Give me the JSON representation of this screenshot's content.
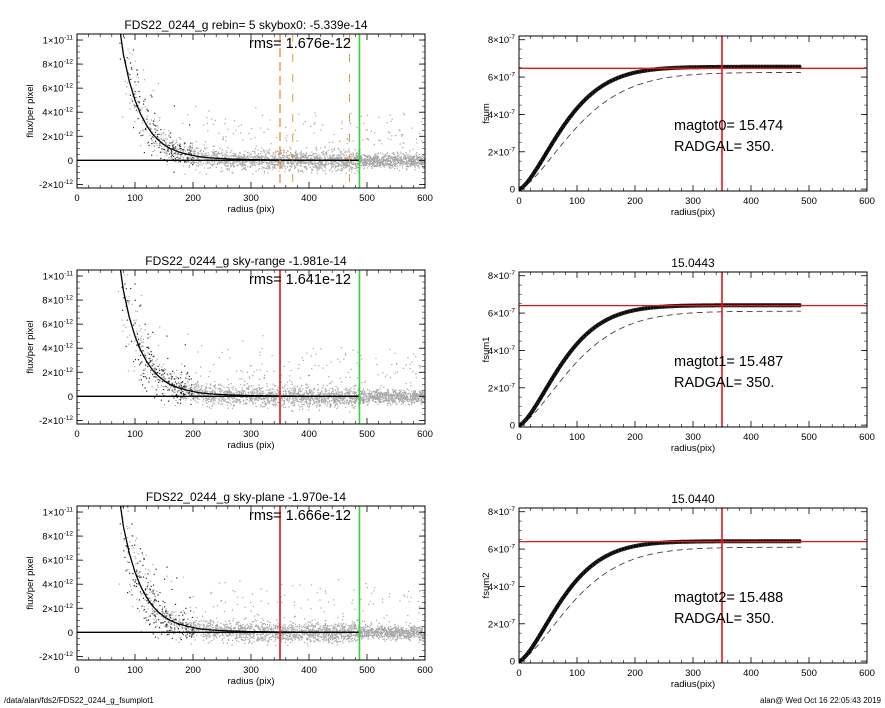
{
  "footer": {
    "path": "/data/alan/fds2/FDS22_0244_g_fsumplot1",
    "stamp": "alan@  Wed Oct 16 22:05:43 2019"
  },
  "colors": {
    "red": "#e8141b",
    "green": "#2fd62f",
    "orange": "#e6811e",
    "scatter": "#a6a6a6",
    "dark_scatter": "#2a2a2a"
  },
  "chart_data": [
    {
      "type": "scatter",
      "panel": "profile-1",
      "title": "FDS22_0244_g rebin= 5    skybox0: -5.339e-14",
      "annotation": "rms= 1.676e-12",
      "xlabel": "radius (pix)",
      "ylabel": "flux/per pixel",
      "xlim": [
        0,
        600
      ],
      "ylim": [
        -2.3e-12,
        1.05e-11
      ],
      "xticks": [
        0,
        100,
        200,
        300,
        400,
        500,
        600
      ],
      "yticks": [
        {
          "value": 1e-11,
          "mant": "1×10",
          "exp": "-11"
        },
        {
          "value": 8e-12,
          "mant": "8×10",
          "exp": "-12"
        },
        {
          "value": 6e-12,
          "mant": "6×10",
          "exp": "-12"
        },
        {
          "value": 4e-12,
          "mant": "4×10",
          "exp": "-12"
        },
        {
          "value": 2e-12,
          "mant": "2×10",
          "exp": "-12"
        },
        {
          "value": 0,
          "mant": "0",
          "exp": ""
        },
        {
          "value": -2e-12,
          "mant": "-2×10",
          "exp": "-12"
        }
      ],
      "vlines": [
        {
          "x": 350,
          "color": "#e6811e",
          "style": "dashed"
        },
        {
          "x": 372,
          "color": "#e6811e",
          "style": "dashed-fine"
        },
        {
          "x": 470,
          "color": "#e6811e",
          "style": "dashed-fine"
        },
        {
          "x": 487,
          "color": "#2fd62f",
          "style": "solid"
        }
      ],
      "mean_profile": {
        "x": [
          75,
          80,
          90,
          100,
          110,
          120,
          130,
          140,
          150,
          160,
          175,
          190,
          210,
          230,
          260,
          300,
          350,
          400,
          450,
          487
        ],
        "y": [
          1.05e-11,
          8.8e-12,
          6.6e-12,
          5e-12,
          3.8e-12,
          2.9e-12,
          2.2e-12,
          1.7e-12,
          1.3e-12,
          1e-12,
          7e-13,
          5e-13,
          3e-13,
          2e-13,
          1.2e-13,
          6e-14,
          3e-14,
          1e-14,
          0,
          0
        ]
      },
      "baseline": 0
    },
    {
      "type": "line",
      "panel": "growth-1",
      "title": "",
      "annotations": [
        "magtot0=  15.474",
        "RADGAL=    350."
      ],
      "xlabel": "radius(pix)",
      "ylabel": "fsum",
      "xlim": [
        0,
        600
      ],
      "ylim": [
        -1e-08,
        8.2e-07
      ],
      "xticks": [
        0,
        100,
        200,
        300,
        400,
        500,
        600
      ],
      "yticks": [
        {
          "value": 8e-07,
          "mant": "8×10",
          "exp": "-7"
        },
        {
          "value": 6e-07,
          "mant": "6×10",
          "exp": "-7"
        },
        {
          "value": 4e-07,
          "mant": "4×10",
          "exp": "-7"
        },
        {
          "value": 2e-07,
          "mant": "2×10",
          "exp": "-7"
        },
        {
          "value": 0,
          "mant": "0",
          "exp": ""
        }
      ],
      "hline": 6.47e-07,
      "vline": 350,
      "total": 6.55e-07,
      "scale": 95,
      "dashed_total": 6.25e-07,
      "dashed_scale": 120,
      "xmax": 487
    },
    {
      "type": "scatter",
      "panel": "profile-2",
      "title": "FDS22_0244_g sky-range -1.981e-14",
      "annotation": "rms= 1.641e-12",
      "xlabel": "radius (pix)",
      "ylabel": "flux/per pixel",
      "xlim": [
        0,
        600
      ],
      "ylim": [
        -2.3e-12,
        1.05e-11
      ],
      "xticks": [
        0,
        100,
        200,
        300,
        400,
        500,
        600
      ],
      "yticks": [
        {
          "value": 1e-11,
          "mant": "1×10",
          "exp": "-11"
        },
        {
          "value": 8e-12,
          "mant": "8×10",
          "exp": "-12"
        },
        {
          "value": 6e-12,
          "mant": "6×10",
          "exp": "-12"
        },
        {
          "value": 4e-12,
          "mant": "4×10",
          "exp": "-12"
        },
        {
          "value": 2e-12,
          "mant": "2×10",
          "exp": "-12"
        },
        {
          "value": 0,
          "mant": "0",
          "exp": ""
        },
        {
          "value": -2e-12,
          "mant": "-2×10",
          "exp": "-12"
        }
      ],
      "vlines": [
        {
          "x": 350,
          "color": "#e8141b",
          "style": "solid"
        },
        {
          "x": 487,
          "color": "#2fd62f",
          "style": "solid"
        }
      ],
      "mean_profile": {
        "x": [
          75,
          80,
          90,
          100,
          110,
          120,
          130,
          140,
          150,
          160,
          175,
          190,
          210,
          230,
          260,
          300,
          350,
          400,
          450,
          487
        ],
        "y": [
          1.05e-11,
          8.8e-12,
          6.6e-12,
          5e-12,
          3.8e-12,
          2.9e-12,
          2.2e-12,
          1.7e-12,
          1.3e-12,
          1e-12,
          7e-13,
          5e-13,
          3e-13,
          2e-13,
          1.2e-13,
          6e-14,
          3e-14,
          1e-14,
          0,
          0
        ]
      },
      "baseline": 0
    },
    {
      "type": "line",
      "panel": "growth-2",
      "title": "15.0443",
      "annotations": [
        "magtot1=  15.487",
        "RADGAL=    350."
      ],
      "xlabel": "radius(pix)",
      "ylabel": "fsum1",
      "xlim": [
        0,
        600
      ],
      "ylim": [
        -1e-08,
        8.2e-07
      ],
      "xticks": [
        0,
        100,
        200,
        300,
        400,
        500,
        600
      ],
      "yticks": [
        {
          "value": 8e-07,
          "mant": "8×10",
          "exp": "-7"
        },
        {
          "value": 6e-07,
          "mant": "6×10",
          "exp": "-7"
        },
        {
          "value": 4e-07,
          "mant": "4×10",
          "exp": "-7"
        },
        {
          "value": 2e-07,
          "mant": "2×10",
          "exp": "-7"
        },
        {
          "value": 0,
          "mant": "0",
          "exp": ""
        }
      ],
      "hline": 6.4e-07,
      "vline": 350,
      "total": 6.42e-07,
      "scale": 92,
      "dashed_total": 6.1e-07,
      "dashed_scale": 115,
      "xmax": 487
    },
    {
      "type": "scatter",
      "panel": "profile-3",
      "title": "FDS22_0244_g sky-plane -1.970e-14",
      "annotation": "rms= 1.666e-12",
      "xlabel": "radius (pix)",
      "ylabel": "flux/per pixel",
      "xlim": [
        0,
        600
      ],
      "ylim": [
        -2.3e-12,
        1.05e-11
      ],
      "xticks": [
        0,
        100,
        200,
        300,
        400,
        500,
        600
      ],
      "yticks": [
        {
          "value": 1e-11,
          "mant": "1×10",
          "exp": "-11"
        },
        {
          "value": 8e-12,
          "mant": "8×10",
          "exp": "-12"
        },
        {
          "value": 6e-12,
          "mant": "6×10",
          "exp": "-12"
        },
        {
          "value": 4e-12,
          "mant": "4×10",
          "exp": "-12"
        },
        {
          "value": 2e-12,
          "mant": "2×10",
          "exp": "-12"
        },
        {
          "value": 0,
          "mant": "0",
          "exp": ""
        },
        {
          "value": -2e-12,
          "mant": "-2×10",
          "exp": "-12"
        }
      ],
      "vlines": [
        {
          "x": 350,
          "color": "#e8141b",
          "style": "solid"
        },
        {
          "x": 487,
          "color": "#2fd62f",
          "style": "solid"
        }
      ],
      "mean_profile": {
        "x": [
          75,
          80,
          90,
          100,
          110,
          120,
          130,
          140,
          150,
          160,
          175,
          190,
          210,
          230,
          260,
          300,
          350,
          400,
          450,
          487
        ],
        "y": [
          1.05e-11,
          8.8e-12,
          6.6e-12,
          5e-12,
          3.8e-12,
          2.9e-12,
          2.2e-12,
          1.7e-12,
          1.3e-12,
          1e-12,
          7e-13,
          5e-13,
          3e-13,
          2e-13,
          1.2e-13,
          6e-14,
          3e-14,
          1e-14,
          0,
          0
        ]
      },
      "baseline": 0
    },
    {
      "type": "line",
      "panel": "growth-3",
      "title": "15.0440",
      "annotations": [
        "magtot2=  15.488",
        "RADGAL=    350."
      ],
      "xlabel": "radius(pix)",
      "ylabel": "fsum2",
      "xlim": [
        0,
        600
      ],
      "ylim": [
        -1e-08,
        8.2e-07
      ],
      "xticks": [
        0,
        100,
        200,
        300,
        400,
        500,
        600
      ],
      "yticks": [
        {
          "value": 8e-07,
          "mant": "8×10",
          "exp": "-7"
        },
        {
          "value": 6e-07,
          "mant": "6×10",
          "exp": "-7"
        },
        {
          "value": 4e-07,
          "mant": "4×10",
          "exp": "-7"
        },
        {
          "value": 2e-07,
          "mant": "2×10",
          "exp": "-7"
        },
        {
          "value": 0,
          "mant": "0",
          "exp": ""
        }
      ],
      "hline": 6.4e-07,
      "vline": 350,
      "total": 6.42e-07,
      "scale": 92,
      "dashed_total": 6.1e-07,
      "dashed_scale": 115,
      "xmax": 487
    }
  ]
}
